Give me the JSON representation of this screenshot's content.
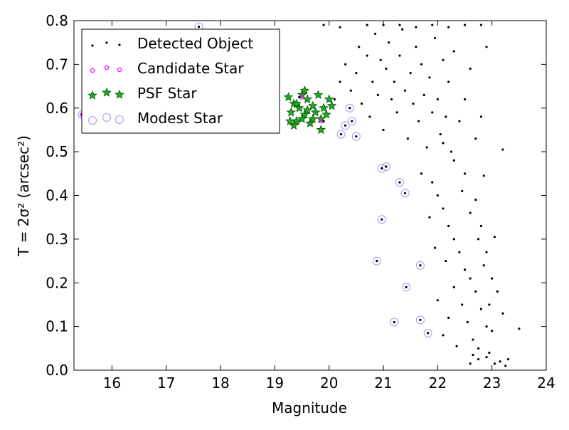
{
  "chart_data": {
    "type": "scatter",
    "xlabel": "Magnitude",
    "ylabel": "T = 2σ² (arcsec²)",
    "xlim": [
      15.3,
      24.0
    ],
    "ylim": [
      0.0,
      0.8
    ],
    "xticks": [
      "16",
      "17",
      "18",
      "19",
      "20",
      "21",
      "22",
      "23",
      "24"
    ],
    "yticks": [
      "0.0",
      "0.1",
      "0.2",
      "0.3",
      "0.4",
      "0.5",
      "0.6",
      "0.7",
      "0.8"
    ],
    "grid": false,
    "legend_position": "top-left",
    "series": [
      {
        "name": "Detected Object",
        "marker": "dot",
        "color": "#000000",
        "points": [
          [
            15.45,
            0.585
          ],
          [
            15.6,
            0.61
          ],
          [
            15.62,
            0.64
          ],
          [
            15.75,
            0.6
          ],
          [
            15.95,
            0.63
          ],
          [
            16.15,
            0.66
          ],
          [
            16.3,
            0.61
          ],
          [
            16.55,
            0.58
          ],
          [
            16.75,
            0.63
          ],
          [
            16.9,
            0.6
          ],
          [
            17.15,
            0.58
          ],
          [
            17.35,
            0.6
          ],
          [
            17.6,
            0.786
          ],
          [
            17.8,
            0.62
          ],
          [
            18.05,
            0.6
          ],
          [
            18.3,
            0.59
          ],
          [
            18.55,
            0.61
          ],
          [
            18.8,
            0.63
          ],
          [
            19.0,
            0.6
          ],
          [
            19.45,
            0.625
          ],
          [
            19.9,
            0.57
          ],
          [
            20.22,
            0.54
          ],
          [
            20.3,
            0.56
          ],
          [
            20.38,
            0.6
          ],
          [
            20.5,
            0.535
          ],
          [
            20.42,
            0.57
          ],
          [
            20.88,
            0.25
          ],
          [
            20.97,
            0.345
          ],
          [
            20.97,
            0.462
          ],
          [
            21.05,
            0.466
          ],
          [
            21.2,
            0.11
          ],
          [
            21.3,
            0.43
          ],
          [
            21.4,
            0.405
          ],
          [
            21.42,
            0.19
          ],
          [
            21.68,
            0.24
          ],
          [
            21.68,
            0.115
          ],
          [
            21.82,
            0.085
          ],
          [
            20.1,
            0.62
          ],
          [
            20.2,
            0.66
          ],
          [
            20.3,
            0.7
          ],
          [
            20.4,
            0.64
          ],
          [
            20.5,
            0.68
          ],
          [
            20.55,
            0.74
          ],
          [
            20.6,
            0.61
          ],
          [
            20.7,
            0.72
          ],
          [
            20.75,
            0.58
          ],
          [
            20.8,
            0.66
          ],
          [
            20.85,
            0.77
          ],
          [
            20.9,
            0.63
          ],
          [
            20.95,
            0.71
          ],
          [
            21.0,
            0.55
          ],
          [
            21.05,
            0.69
          ],
          [
            21.1,
            0.75
          ],
          [
            21.15,
            0.62
          ],
          [
            21.2,
            0.66
          ],
          [
            21.25,
            0.59
          ],
          [
            21.3,
            0.72
          ],
          [
            21.35,
            0.78
          ],
          [
            21.4,
            0.64
          ],
          [
            21.45,
            0.53
          ],
          [
            21.5,
            0.68
          ],
          [
            21.55,
            0.61
          ],
          [
            21.6,
            0.74
          ],
          [
            21.65,
            0.57
          ],
          [
            21.7,
            0.7
          ],
          [
            21.75,
            0.63
          ],
          [
            21.8,
            0.51
          ],
          [
            21.85,
            0.67
          ],
          [
            21.9,
            0.59
          ],
          [
            21.95,
            0.76
          ],
          [
            22.0,
            0.62
          ],
          [
            22.05,
            0.54
          ],
          [
            22.1,
            0.71
          ],
          [
            22.15,
            0.58
          ],
          [
            22.2,
            0.66
          ],
          [
            22.25,
            0.5
          ],
          [
            22.3,
            0.73
          ],
          [
            22.4,
            0.57
          ],
          [
            22.5,
            0.62
          ],
          [
            22.6,
            0.69
          ],
          [
            22.7,
            0.53
          ],
          [
            22.8,
            0.58
          ],
          [
            22.9,
            0.74
          ],
          [
            20.7,
            0.79
          ],
          [
            21.0,
            0.79
          ],
          [
            21.3,
            0.79
          ],
          [
            21.6,
            0.785
          ],
          [
            21.9,
            0.79
          ],
          [
            22.2,
            0.785
          ],
          [
            22.5,
            0.79
          ],
          [
            22.8,
            0.79
          ],
          [
            20.2,
            0.785
          ],
          [
            19.9,
            0.79
          ],
          [
            21.7,
            0.45
          ],
          [
            21.9,
            0.43
          ],
          [
            22.0,
            0.4
          ],
          [
            22.1,
            0.37
          ],
          [
            21.85,
            0.35
          ],
          [
            22.2,
            0.33
          ],
          [
            22.3,
            0.3
          ],
          [
            21.95,
            0.28
          ],
          [
            22.4,
            0.27
          ],
          [
            22.15,
            0.25
          ],
          [
            22.5,
            0.23
          ],
          [
            22.6,
            0.21
          ],
          [
            22.3,
            0.19
          ],
          [
            22.7,
            0.18
          ],
          [
            22.0,
            0.16
          ],
          [
            22.45,
            0.15
          ],
          [
            22.8,
            0.14
          ],
          [
            22.2,
            0.12
          ],
          [
            22.55,
            0.11
          ],
          [
            22.9,
            0.1
          ],
          [
            22.1,
            0.08
          ],
          [
            22.65,
            0.07
          ],
          [
            22.35,
            0.055
          ],
          [
            22.75,
            0.05
          ],
          [
            22.1,
            0.52
          ],
          [
            22.3,
            0.48
          ],
          [
            22.5,
            0.45
          ],
          [
            22.45,
            0.41
          ],
          [
            22.7,
            0.39
          ],
          [
            22.6,
            0.36
          ],
          [
            22.8,
            0.33
          ],
          [
            22.75,
            0.3
          ],
          [
            22.9,
            0.27
          ],
          [
            22.85,
            0.24
          ],
          [
            23.0,
            0.21
          ],
          [
            23.1,
            0.18
          ],
          [
            22.95,
            0.15
          ],
          [
            23.2,
            0.13
          ],
          [
            23.0,
            0.09
          ],
          [
            23.05,
            0.305
          ],
          [
            23.2,
            0.505
          ],
          [
            22.85,
            0.445
          ],
          [
            22.65,
            0.035
          ],
          [
            22.75,
            0.025
          ],
          [
            22.9,
            0.03
          ],
          [
            23.05,
            0.015
          ],
          [
            23.15,
            0.02
          ],
          [
            23.3,
            0.025
          ],
          [
            23.25,
            0.01
          ],
          [
            23.5,
            0.095
          ],
          [
            22.6,
            0.015
          ],
          [
            22.95,
            0.04
          ]
        ]
      },
      {
        "name": "Candidate Star",
        "marker": "small-circle",
        "color": "#ff00ff",
        "points": [
          [
            15.45,
            0.585
          ],
          [
            19.5,
            0.625
          ],
          [
            19.85,
            0.57
          ]
        ]
      },
      {
        "name": "PSF Star",
        "marker": "star",
        "color": "#00aa00",
        "points": [
          [
            19.25,
            0.625
          ],
          [
            19.3,
            0.59
          ],
          [
            19.35,
            0.61
          ],
          [
            19.4,
            0.57
          ],
          [
            19.45,
            0.6
          ],
          [
            19.5,
            0.63
          ],
          [
            19.55,
            0.585
          ],
          [
            19.6,
            0.62
          ],
          [
            19.65,
            0.565
          ],
          [
            19.7,
            0.605
          ],
          [
            19.75,
            0.59
          ],
          [
            19.8,
            0.63
          ],
          [
            19.85,
            0.575
          ],
          [
            19.9,
            0.6
          ],
          [
            19.95,
            0.585
          ],
          [
            20.0,
            0.62
          ],
          [
            20.05,
            0.605
          ],
          [
            19.35,
            0.56
          ],
          [
            19.5,
            0.575
          ],
          [
            19.6,
            0.595
          ],
          [
            19.4,
            0.61
          ],
          [
            19.7,
            0.575
          ],
          [
            19.85,
            0.55
          ],
          [
            19.28,
            0.57
          ],
          [
            19.55,
            0.64
          ]
        ]
      },
      {
        "name": "Modest Star",
        "marker": "open-circle",
        "color": "#9999ff",
        "points": [
          [
            15.45,
            0.585
          ],
          [
            17.6,
            0.786
          ],
          [
            20.22,
            0.54
          ],
          [
            20.3,
            0.56
          ],
          [
            20.38,
            0.6
          ],
          [
            20.5,
            0.535
          ],
          [
            20.42,
            0.57
          ],
          [
            20.88,
            0.25
          ],
          [
            20.97,
            0.345
          ],
          [
            20.97,
            0.462
          ],
          [
            21.05,
            0.466
          ],
          [
            21.2,
            0.11
          ],
          [
            21.3,
            0.43
          ],
          [
            21.4,
            0.405
          ],
          [
            21.42,
            0.19
          ],
          [
            21.68,
            0.24
          ],
          [
            21.68,
            0.115
          ],
          [
            21.82,
            0.085
          ]
        ]
      }
    ]
  }
}
